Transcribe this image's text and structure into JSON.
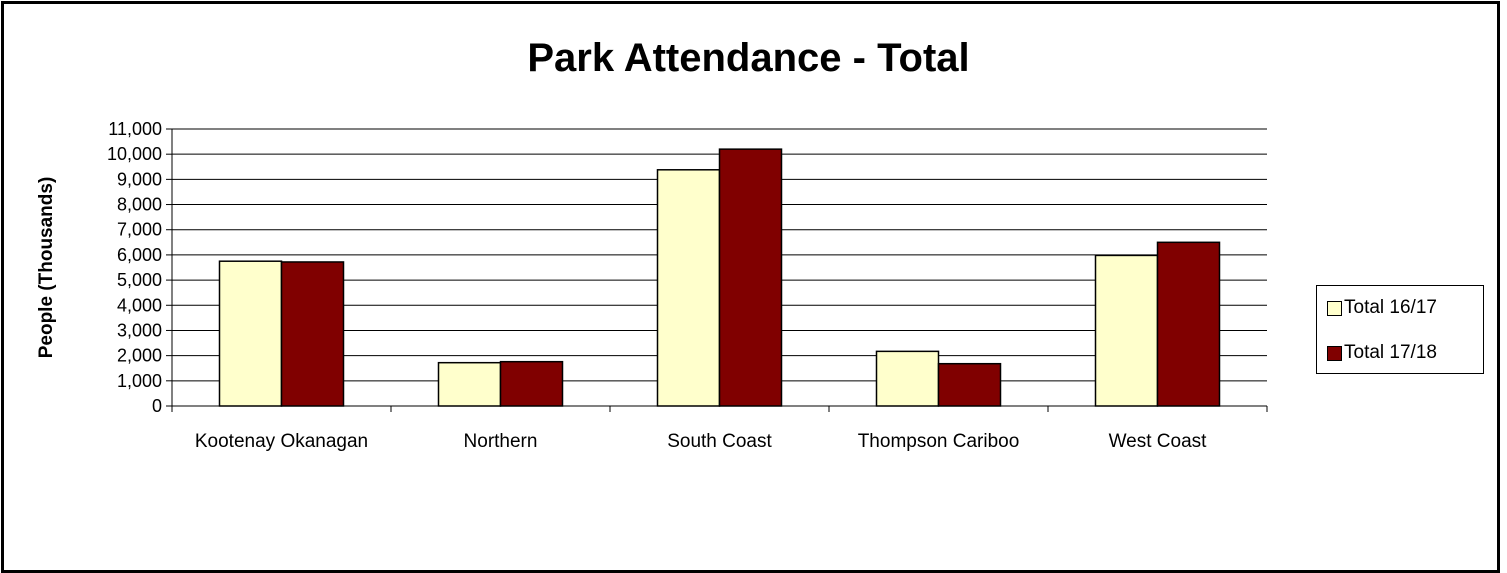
{
  "chart_data": {
    "type": "bar",
    "title": "Park Attendance - Total",
    "xlabel": "",
    "ylabel": "People (Thousands)",
    "categories": [
      "Kootenay Okanagan",
      "Northern",
      "South Coast",
      "Thompson Cariboo",
      "West Coast"
    ],
    "series": [
      {
        "name": "Total 16/17",
        "values": [
          5750,
          1720,
          9380,
          2170,
          5980
        ],
        "color": "#FFFFCC"
      },
      {
        "name": "Total 17/18",
        "values": [
          5720,
          1760,
          10200,
          1680,
          6500
        ],
        "color": "#800000"
      }
    ],
    "ylim": [
      0,
      11000
    ],
    "yticks": [
      "0",
      "1,000",
      "2,000",
      "3,000",
      "4,000",
      "5,000",
      "6,000",
      "7,000",
      "8,000",
      "9,000",
      "10,000",
      "11,000"
    ],
    "grid": true,
    "legend_position": "right"
  }
}
